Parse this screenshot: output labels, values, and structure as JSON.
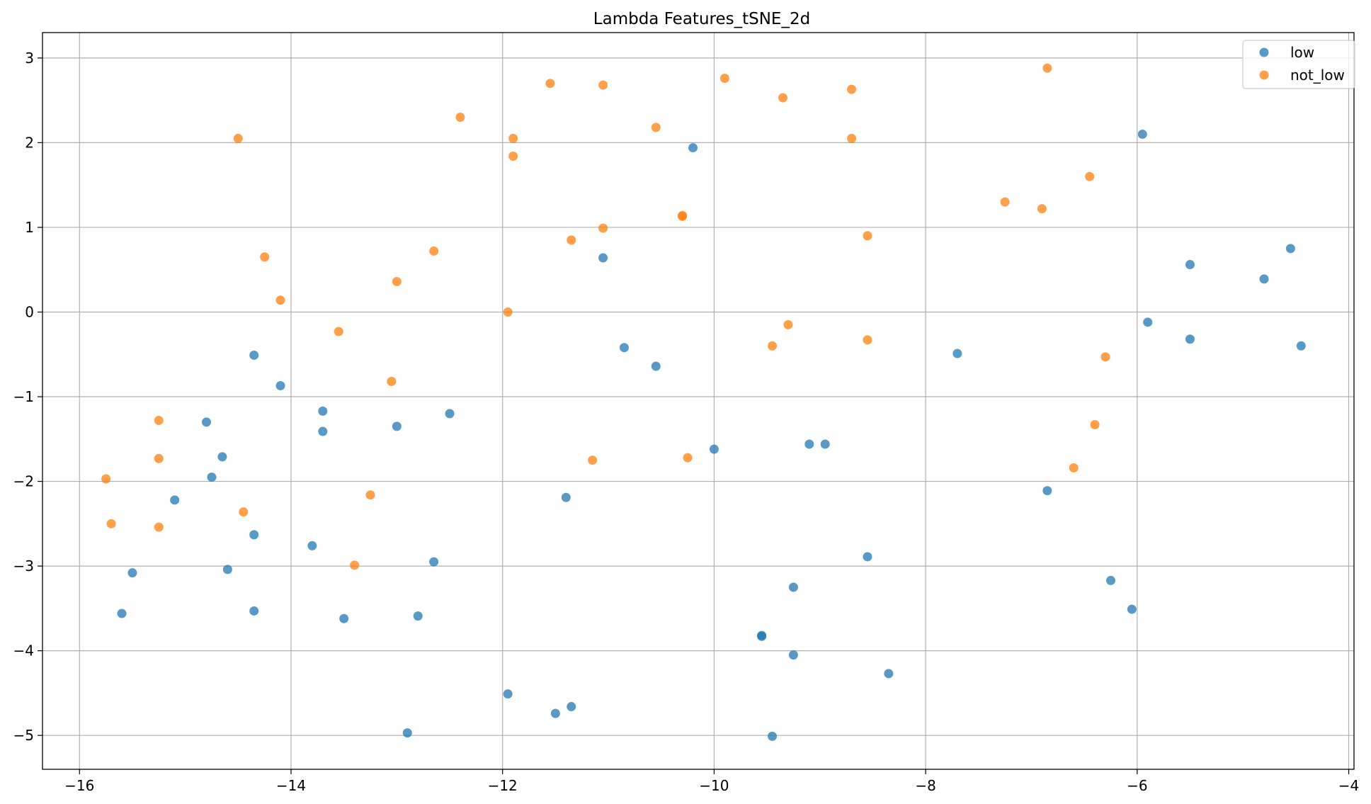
{
  "chart_data": {
    "type": "scatter",
    "title": "Lambda Features_tSNE_2d",
    "xlabel": "",
    "ylabel": "",
    "xlim": [
      -16.35,
      -3.95
    ],
    "ylim": [
      -5.4,
      3.3
    ],
    "xticks": [
      -16,
      -14,
      -12,
      -10,
      -8,
      -6,
      -4
    ],
    "yticks": [
      3,
      2,
      1,
      0,
      -1,
      -2,
      -3,
      -4,
      -5
    ],
    "xtick_labels": [
      "−16",
      "−14",
      "−12",
      "−10",
      "−8",
      "−6",
      "−4"
    ],
    "ytick_labels": [
      "3",
      "2",
      "1",
      "0",
      "−1",
      "−2",
      "−3",
      "−4",
      "−5"
    ],
    "grid": true,
    "legend_position": "top-right",
    "series": [
      {
        "name": "low",
        "color": "#1f77b4",
        "points": [
          [
            -15.6,
            -3.56
          ],
          [
            -15.5,
            -3.08
          ],
          [
            -15.1,
            -2.22
          ],
          [
            -14.8,
            -1.3
          ],
          [
            -14.75,
            -1.95
          ],
          [
            -14.65,
            -1.71
          ],
          [
            -14.6,
            -3.04
          ],
          [
            -14.35,
            -0.51
          ],
          [
            -14.35,
            -2.63
          ],
          [
            -14.35,
            -3.53
          ],
          [
            -14.1,
            -0.87
          ],
          [
            -13.8,
            -2.76
          ],
          [
            -13.7,
            -1.17
          ],
          [
            -13.7,
            -1.41
          ],
          [
            -13.5,
            -3.62
          ],
          [
            -13.0,
            -1.35
          ],
          [
            -12.9,
            -4.97
          ],
          [
            -12.8,
            -3.59
          ],
          [
            -12.65,
            -2.95
          ],
          [
            -12.5,
            -1.2
          ],
          [
            -11.95,
            -4.51
          ],
          [
            -11.5,
            -4.74
          ],
          [
            -11.4,
            -2.19
          ],
          [
            -11.35,
            -4.66
          ],
          [
            -11.05,
            0.64
          ],
          [
            -10.85,
            -0.42
          ],
          [
            -10.55,
            -0.64
          ],
          [
            -10.2,
            1.94
          ],
          [
            -10.0,
            -1.62
          ],
          [
            -9.55,
            -3.82
          ],
          [
            -9.55,
            -3.83
          ],
          [
            -9.45,
            -5.01
          ],
          [
            -9.25,
            -3.25
          ],
          [
            -9.25,
            -4.05
          ],
          [
            -9.1,
            -1.56
          ],
          [
            -8.95,
            -1.56
          ],
          [
            -8.55,
            -2.89
          ],
          [
            -8.35,
            -4.27
          ],
          [
            -7.7,
            -0.49
          ],
          [
            -6.85,
            -2.11
          ],
          [
            -6.25,
            -3.17
          ],
          [
            -6.05,
            -3.51
          ],
          [
            -5.95,
            2.1
          ],
          [
            -5.9,
            -0.12
          ],
          [
            -5.5,
            0.56
          ],
          [
            -5.5,
            -0.32
          ],
          [
            -4.8,
            0.39
          ],
          [
            -4.55,
            0.75
          ],
          [
            -4.45,
            -0.4
          ]
        ]
      },
      {
        "name": "not_low",
        "color": "#ff7f0e",
        "points": [
          [
            -15.75,
            -1.97
          ],
          [
            -15.7,
            -2.5
          ],
          [
            -15.25,
            -1.28
          ],
          [
            -15.25,
            -1.73
          ],
          [
            -15.25,
            -2.54
          ],
          [
            -14.5,
            2.05
          ],
          [
            -14.45,
            -2.36
          ],
          [
            -14.25,
            0.65
          ],
          [
            -14.1,
            0.14
          ],
          [
            -13.55,
            -0.23
          ],
          [
            -13.4,
            -2.99
          ],
          [
            -13.25,
            -2.16
          ],
          [
            -13.05,
            -0.82
          ],
          [
            -13.0,
            0.36
          ],
          [
            -12.65,
            0.72
          ],
          [
            -12.4,
            2.3
          ],
          [
            -11.95,
            0.0
          ],
          [
            -11.9,
            2.05
          ],
          [
            -11.9,
            1.84
          ],
          [
            -11.55,
            2.7
          ],
          [
            -11.35,
            0.85
          ],
          [
            -11.15,
            -1.75
          ],
          [
            -11.05,
            2.68
          ],
          [
            -11.05,
            0.99
          ],
          [
            -10.55,
            2.18
          ],
          [
            -10.3,
            1.14
          ],
          [
            -10.3,
            1.13
          ],
          [
            -10.25,
            -1.72
          ],
          [
            -9.9,
            2.76
          ],
          [
            -9.45,
            -0.4
          ],
          [
            -9.35,
            2.53
          ],
          [
            -9.3,
            -0.15
          ],
          [
            -8.7,
            2.63
          ],
          [
            -8.7,
            2.05
          ],
          [
            -8.55,
            0.9
          ],
          [
            -8.55,
            -0.33
          ],
          [
            -7.25,
            1.3
          ],
          [
            -6.9,
            1.22
          ],
          [
            -6.85,
            2.88
          ],
          [
            -6.6,
            -1.84
          ],
          [
            -6.45,
            1.6
          ],
          [
            -6.4,
            -1.33
          ],
          [
            -6.3,
            -0.53
          ]
        ]
      }
    ]
  }
}
